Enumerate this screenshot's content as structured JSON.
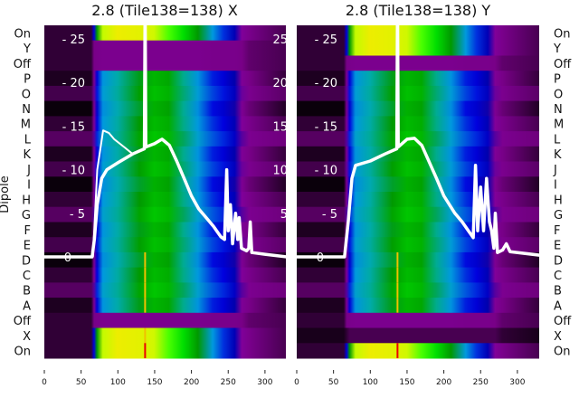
{
  "chart_data": [
    {
      "type": "heatmap",
      "title": "2.8 (Tile138=138) X",
      "ylabel": "Dipole",
      "row_labels": [
        "On",
        "Y",
        "Off",
        "P",
        "O",
        "N",
        "M",
        "L",
        "K",
        "J",
        "I",
        "H",
        "G",
        "F",
        "E",
        "D",
        "C",
        "B",
        "A",
        "Off",
        "X",
        "On"
      ],
      "row_types": [
        "on",
        "off",
        "off",
        "dip",
        "dip",
        "dip",
        "dip",
        "dip",
        "dip",
        "dip",
        "dip",
        "dip",
        "dip",
        "dip",
        "dip",
        "dip",
        "dip",
        "dip",
        "dip",
        "off",
        "on",
        "on"
      ],
      "x_ticks": [
        "0",
        "50",
        "100",
        "150",
        "200",
        "250",
        "300"
      ],
      "x_tick_values": [
        0,
        50,
        100,
        150,
        200,
        250,
        300
      ],
      "xlim": [
        0,
        330
      ],
      "line_yticks": [
        "- 25",
        "- 20",
        "- 15",
        "- 10",
        "- 5",
        "0"
      ],
      "line_ytick_values": [
        25,
        20,
        15,
        10,
        5,
        0
      ],
      "line_ylim": [
        -11.6,
        26.9
      ],
      "spike_channel": 137,
      "series": [
        {
          "name": "main",
          "x": [
            0,
            65,
            68,
            72,
            78,
            85,
            100,
            120,
            136,
            137,
            138,
            150,
            160,
            170,
            180,
            190,
            200,
            210,
            220,
            230,
            240,
            245,
            248,
            250,
            253,
            256,
            260,
            263,
            265,
            268,
            275,
            278,
            280,
            282,
            300,
            330
          ],
          "y": [
            0,
            0,
            2,
            6,
            9,
            10,
            10.8,
            11.8,
            12.4,
            30,
            12.6,
            13,
            13.5,
            12.8,
            11,
            9,
            7,
            5.5,
            4.5,
            3.5,
            2.3,
            2,
            10,
            3,
            6,
            1.5,
            5,
            2,
            4.5,
            1,
            0.7,
            1,
            4,
            0.5,
            0.3,
            0
          ]
        },
        {
          "name": "outlier",
          "x": [
            66,
            72,
            80,
            88,
            95,
            110,
            120
          ],
          "y": [
            0,
            10,
            14.5,
            14.2,
            13.5,
            12.5,
            11.8
          ]
        }
      ]
    },
    {
      "type": "heatmap",
      "title": "2.8 (Tile138=138) Y",
      "row_labels": [
        "On",
        "Y",
        "Off",
        "P",
        "O",
        "N",
        "M",
        "L",
        "K",
        "J",
        "I",
        "H",
        "G",
        "F",
        "E",
        "D",
        "C",
        "B",
        "A",
        "Off",
        "X",
        "On"
      ],
      "row_types": [
        "on",
        "on",
        "off",
        "dip",
        "dip",
        "dip",
        "dip",
        "dip",
        "dip",
        "dip",
        "dip",
        "dip",
        "dip",
        "dip",
        "dip",
        "dip",
        "dip",
        "dip",
        "dip",
        "off",
        "dark",
        "on"
      ],
      "x_ticks": [
        "0",
        "50",
        "100",
        "150",
        "200",
        "250",
        "300"
      ],
      "x_tick_values": [
        0,
        50,
        100,
        150,
        200,
        250,
        300
      ],
      "xlim": [
        0,
        330
      ],
      "line_yticks": [
        "- 25",
        "- 20",
        "- 15",
        "- 10",
        "- 5",
        "0"
      ],
      "line_ytick_values": [
        25,
        20,
        15,
        10,
        5,
        0
      ],
      "line_ylim": [
        -11.6,
        26.9
      ],
      "spike_channel": 137,
      "series": [
        {
          "name": "main",
          "x": [
            0,
            65,
            70,
            75,
            80,
            100,
            120,
            136,
            137,
            138,
            150,
            160,
            170,
            190,
            200,
            215,
            225,
            240,
            243,
            246,
            250,
            254,
            258,
            262,
            265,
            268,
            270,
            273,
            280,
            285,
            290,
            330
          ],
          "y": [
            0,
            0,
            4,
            9,
            10.5,
            11,
            11.8,
            12.4,
            30,
            12.6,
            13.5,
            13.6,
            12.8,
            9,
            7,
            5,
            4,
            2.2,
            10.5,
            3,
            8,
            3,
            9,
            4,
            3,
            1,
            5,
            0.5,
            0.8,
            1.5,
            0.6,
            0.2
          ]
        }
      ]
    }
  ]
}
